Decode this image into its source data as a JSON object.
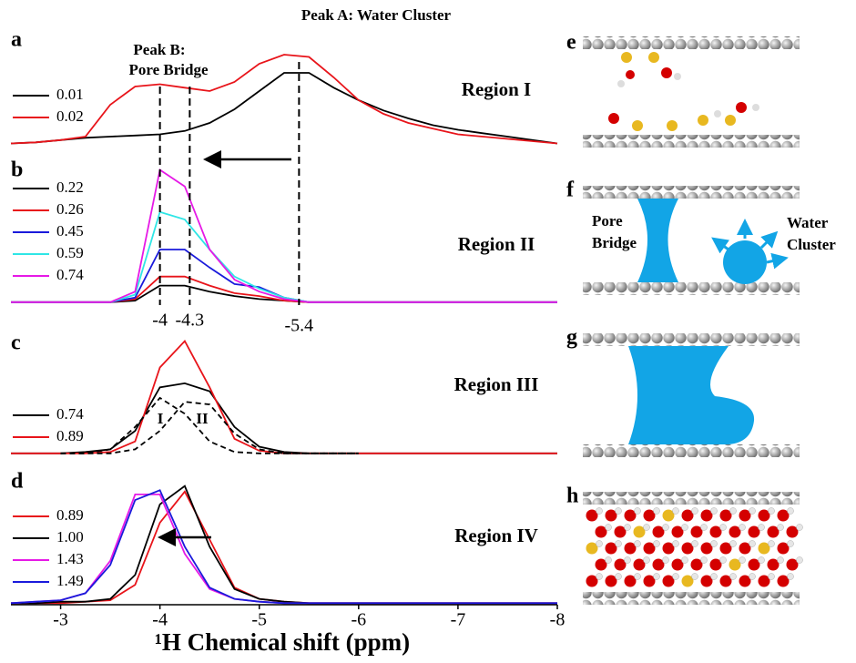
{
  "chart_data": [
    {
      "type": "line",
      "panel": "a",
      "region": "Region I",
      "x": [
        -2.5,
        -2.75,
        -3,
        -3.25,
        -3.5,
        -3.75,
        -4,
        -4.25,
        -4.5,
        -4.75,
        -5,
        -5.25,
        -5.5,
        -5.75,
        -6,
        -6.25,
        -6.5,
        -6.75,
        -7,
        -7.25,
        -7.5,
        -7.75,
        -8
      ],
      "xlim": [
        -2.5,
        -8
      ],
      "ylim": [
        0,
        100
      ],
      "series": [
        {
          "name": "0.01",
          "color": "#000000",
          "values": [
            6,
            7,
            9,
            11,
            12,
            13,
            14,
            17,
            24,
            36,
            52,
            68,
            68,
            55,
            44,
            35,
            28,
            22,
            18,
            15,
            12,
            9,
            6
          ]
        },
        {
          "name": "0.02",
          "color": "#e8141a",
          "values": [
            6,
            7,
            9,
            12,
            40,
            56,
            58,
            55,
            52,
            60,
            76,
            84,
            82,
            64,
            44,
            32,
            24,
            19,
            14,
            12,
            10,
            8,
            6
          ]
        }
      ],
      "annotations": [
        "Peak A: Water Cluster",
        "Peak B:",
        "Pore Bridge"
      ]
    },
    {
      "type": "line",
      "panel": "b",
      "region": "Region II",
      "x": [
        -2.5,
        -2.75,
        -3,
        -3.25,
        -3.5,
        -3.75,
        -4,
        -4.25,
        -4.5,
        -4.75,
        -5,
        -5.25,
        -5.5,
        -5.75,
        -6,
        -6.25,
        -6.5,
        -6.75,
        -7,
        -7.25,
        -7.5,
        -7.75,
        -8
      ],
      "xlim": [
        -2.5,
        -8
      ],
      "ylim": [
        0,
        100
      ],
      "series": [
        {
          "name": "0.22",
          "color": "#000000",
          "values": [
            5,
            5,
            5,
            5,
            5,
            6,
            16,
            16,
            12,
            9,
            7,
            6,
            5,
            5,
            5,
            5,
            5,
            5,
            5,
            5,
            5,
            5,
            5
          ]
        },
        {
          "name": "0.26",
          "color": "#e8141a",
          "values": [
            5,
            5,
            5,
            5,
            5,
            7,
            22,
            22,
            16,
            11,
            9,
            6,
            5,
            5,
            5,
            5,
            5,
            5,
            5,
            5,
            5,
            5,
            5
          ]
        },
        {
          "name": "0.45",
          "color": "#1a1adb",
          "values": [
            5,
            5,
            5,
            5,
            5,
            8,
            40,
            40,
            28,
            17,
            15,
            8,
            5,
            5,
            5,
            5,
            5,
            5,
            5,
            5,
            5,
            5,
            5
          ]
        },
        {
          "name": "0.59",
          "color": "#2fe6e6",
          "values": [
            5,
            5,
            5,
            5,
            5,
            10,
            65,
            60,
            40,
            22,
            14,
            8,
            5,
            5,
            5,
            5,
            5,
            5,
            5,
            5,
            5,
            5,
            5
          ]
        },
        {
          "name": "0.74",
          "color": "#e619e6",
          "values": [
            5,
            5,
            5,
            5,
            5,
            12,
            93,
            82,
            40,
            20,
            12,
            7,
            5,
            5,
            5,
            5,
            5,
            5,
            5,
            5,
            5,
            5,
            5
          ]
        }
      ],
      "markers": [
        -4.0,
        -4.3,
        -5.4
      ]
    },
    {
      "type": "line",
      "panel": "c",
      "region": "Region III",
      "x": [
        -2.5,
        -2.75,
        -3,
        -3.25,
        -3.5,
        -3.75,
        -4,
        -4.25,
        -4.5,
        -4.75,
        -5,
        -5.25,
        -5.5,
        -5.75,
        -6,
        -6.25,
        -6.5,
        -6.75,
        -7,
        -7.25,
        -7.5,
        -7.75,
        -8
      ],
      "xlim": [
        -2.5,
        -8
      ],
      "ylim": [
        0,
        100
      ],
      "series": [
        {
          "name": "0.74",
          "color": "#000000",
          "values": [
            5,
            5,
            5,
            6,
            8,
            22,
            55,
            58,
            52,
            25,
            10,
            6,
            5,
            5,
            5,
            5,
            5,
            5,
            5,
            5,
            5,
            5,
            5
          ]
        },
        {
          "name": "0.89",
          "color": "#e8141a",
          "values": [
            5,
            5,
            5,
            5,
            6,
            14,
            70,
            90,
            55,
            16,
            7,
            5,
            5,
            5,
            5,
            5,
            5,
            5,
            5,
            5,
            5,
            5,
            5
          ]
        },
        {
          "color": "#000000",
          "style": "dashed",
          "values": [
            null,
            null,
            5,
            5,
            8,
            25,
            47,
            35,
            14,
            6,
            5,
            5,
            5,
            5,
            5,
            null,
            null,
            null,
            null,
            null,
            null,
            null,
            null
          ]
        },
        {
          "color": "#000000",
          "style": "dashed",
          "values": [
            null,
            null,
            5,
            5,
            5,
            8,
            22,
            44,
            42,
            20,
            8,
            5,
            5,
            5,
            5,
            null,
            null,
            null,
            null,
            null,
            null,
            null,
            null
          ]
        }
      ],
      "annotations": [
        "I",
        "II"
      ]
    },
    {
      "type": "line",
      "panel": "d",
      "region": "Region IV",
      "x": [
        -2.5,
        -2.75,
        -3,
        -3.25,
        -3.5,
        -3.75,
        -4,
        -4.25,
        -4.5,
        -4.75,
        -5,
        -5.25,
        -5.5,
        -5.75,
        -6,
        -6.25,
        -6.5,
        -6.75,
        -7,
        -7.25,
        -7.5,
        -7.75,
        -8
      ],
      "xlim": [
        -2.5,
        -8
      ],
      "ylim": [
        0,
        100
      ],
      "xticks": [
        -3,
        -4,
        -5,
        -6,
        -7,
        -8
      ],
      "xlabel": "¹H Chemical shift (ppm)",
      "series": [
        {
          "name": "0.89",
          "color": "#e8141a",
          "values": [
            5,
            5,
            5,
            6,
            7,
            18,
            62,
            84,
            50,
            16,
            8,
            6,
            5,
            5,
            5,
            5,
            5,
            5,
            5,
            5,
            5,
            5,
            5
          ]
        },
        {
          "name": "1.00",
          "color": "#000000",
          "values": [
            5,
            5,
            6,
            6,
            8,
            25,
            75,
            88,
            45,
            15,
            8,
            6,
            5,
            5,
            5,
            5,
            5,
            5,
            5,
            5,
            5,
            5,
            5
          ]
        },
        {
          "name": "1.43",
          "color": "#e619e6",
          "values": [
            5,
            6,
            7,
            12,
            35,
            82,
            82,
            40,
            15,
            8,
            6,
            5,
            5,
            5,
            5,
            5,
            5,
            5,
            5,
            5,
            5,
            5,
            5
          ]
        },
        {
          "name": "1.49",
          "color": "#1a1adb",
          "values": [
            5,
            6,
            7,
            12,
            32,
            78,
            85,
            45,
            16,
            8,
            6,
            5,
            5,
            5,
            5,
            5,
            5,
            5,
            5,
            5,
            5,
            5,
            5
          ]
        }
      ]
    }
  ],
  "schematics": {
    "panels": [
      "e",
      "f",
      "g",
      "h"
    ],
    "labels": [
      "Pore",
      "Bridge",
      "Water",
      "Cluster"
    ]
  }
}
